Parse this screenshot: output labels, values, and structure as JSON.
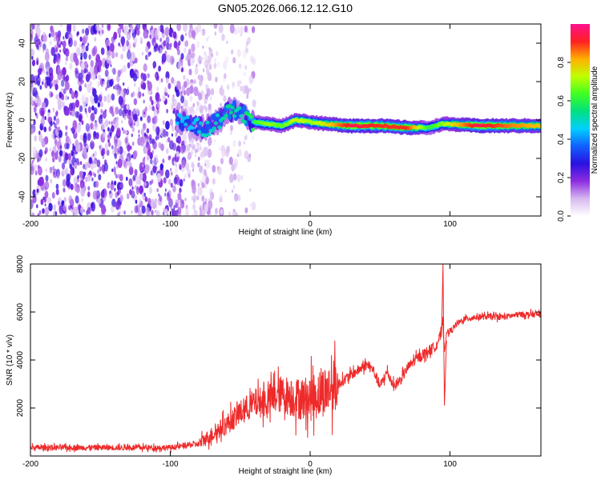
{
  "title": "GN05.2026.066.12.12.G10",
  "colors": {
    "snr_line": "#ee2a2a",
    "axis": "#000000"
  },
  "chart_data": [
    {
      "type": "heatmap",
      "xlabel": "Height of straight line (km)",
      "ylabel": "Frequency (Hz)",
      "xlim": [
        -200,
        165
      ],
      "ylim": [
        -50,
        50
      ],
      "xticks": [
        -200,
        -100,
        0,
        100
      ],
      "xtick_labels": [
        "-200",
        "-100",
        "0",
        "100"
      ],
      "yticks": [
        -40,
        -20,
        0,
        20,
        40
      ],
      "ytick_labels": [
        "-40",
        "-20",
        "0",
        "20",
        "40"
      ],
      "colorbar": {
        "label": "Normalized spectral amplitude",
        "range": [
          0,
          1
        ],
        "ticks": [
          0.0,
          0.2,
          0.4,
          0.6,
          0.8
        ],
        "tick_labels": [
          "0.0",
          "0.2",
          "0.4",
          "0.6",
          "0.8"
        ],
        "colormap": [
          "#ffffff",
          "#d6b8f0",
          "#8d2ce0",
          "#2a10e0",
          "#1060ff",
          "#00d0ff",
          "#00e080",
          "#40ff20",
          "#c0ff00",
          "#ffb000",
          "#ff2020",
          "#ff1090"
        ]
      },
      "noise_region_x": [
        -200,
        -70
      ],
      "ridge": [
        {
          "x": -95,
          "y": 0,
          "amp": 0.45
        },
        {
          "x": -85,
          "y": -2,
          "amp": 0.45
        },
        {
          "x": -75,
          "y": -5,
          "amp": 0.5
        },
        {
          "x": -65,
          "y": 0,
          "amp": 0.5
        },
        {
          "x": -58,
          "y": 5,
          "amp": 0.55
        },
        {
          "x": -50,
          "y": 5,
          "amp": 0.5
        },
        {
          "x": -42,
          "y": -1,
          "amp": 0.6
        },
        {
          "x": -30,
          "y": -2,
          "amp": 0.7
        },
        {
          "x": -20,
          "y": -3,
          "amp": 0.65
        },
        {
          "x": -10,
          "y": 0,
          "amp": 0.75
        },
        {
          "x": 0,
          "y": -1,
          "amp": 0.7
        },
        {
          "x": 10,
          "y": -2,
          "amp": 0.75
        },
        {
          "x": 30,
          "y": -3,
          "amp": 0.95
        },
        {
          "x": 50,
          "y": -3,
          "amp": 0.9
        },
        {
          "x": 70,
          "y": -4,
          "amp": 0.9
        },
        {
          "x": 85,
          "y": -4,
          "amp": 0.6
        },
        {
          "x": 95,
          "y": -2,
          "amp": 0.7
        },
        {
          "x": 120,
          "y": -3,
          "amp": 0.95
        },
        {
          "x": 145,
          "y": -3,
          "amp": 0.85
        },
        {
          "x": 165,
          "y": -3,
          "amp": 0.8
        }
      ]
    },
    {
      "type": "line",
      "series": [
        {
          "name": "SNR",
          "color": "#ee2a2a"
        }
      ],
      "xlabel": "Height of straight line (km)",
      "ylabel": "SNR (10 * v/v)",
      "xlim": [
        -200,
        165
      ],
      "ylim": [
        0,
        8000
      ],
      "xticks": [
        -200,
        -100,
        0,
        100
      ],
      "xtick_labels": [
        "-200",
        "-100",
        "0",
        "100"
      ],
      "yticks": [
        2000,
        4000,
        6000,
        8000
      ],
      "ytick_labels": [
        "2000",
        "4000",
        "6000",
        "8000"
      ],
      "trend": [
        {
          "x": -200,
          "y": 350
        },
        {
          "x": -150,
          "y": 350
        },
        {
          "x": -100,
          "y": 350
        },
        {
          "x": -80,
          "y": 500
        },
        {
          "x": -70,
          "y": 900
        },
        {
          "x": -60,
          "y": 1300
        },
        {
          "x": -50,
          "y": 1800
        },
        {
          "x": -40,
          "y": 2200
        },
        {
          "x": -30,
          "y": 2300
        },
        {
          "x": -20,
          "y": 2600
        },
        {
          "x": -10,
          "y": 2400
        },
        {
          "x": 0,
          "y": 2400
        },
        {
          "x": 10,
          "y": 2700
        },
        {
          "x": 20,
          "y": 3000
        },
        {
          "x": 30,
          "y": 3400
        },
        {
          "x": 35,
          "y": 3600
        },
        {
          "x": 40,
          "y": 3800
        },
        {
          "x": 45,
          "y": 3600
        },
        {
          "x": 50,
          "y": 2900
        },
        {
          "x": 55,
          "y": 3500
        },
        {
          "x": 60,
          "y": 2900
        },
        {
          "x": 65,
          "y": 3200
        },
        {
          "x": 70,
          "y": 3700
        },
        {
          "x": 75,
          "y": 4000
        },
        {
          "x": 80,
          "y": 4200
        },
        {
          "x": 85,
          "y": 4400
        },
        {
          "x": 90,
          "y": 4600
        },
        {
          "x": 93,
          "y": 5000
        },
        {
          "x": 95,
          "y": 5600
        },
        {
          "x": 96,
          "y": 4400
        },
        {
          "x": 98,
          "y": 5200
        },
        {
          "x": 100,
          "y": 5200
        },
        {
          "x": 105,
          "y": 5500
        },
        {
          "x": 110,
          "y": 5700
        },
        {
          "x": 120,
          "y": 5800
        },
        {
          "x": 140,
          "y": 5800
        },
        {
          "x": 150,
          "y": 5900
        },
        {
          "x": 165,
          "y": 5900
        }
      ],
      "spikes": [
        {
          "x": 95,
          "y": 8000
        },
        {
          "x": 96,
          "y": 2100
        }
      ]
    }
  ]
}
